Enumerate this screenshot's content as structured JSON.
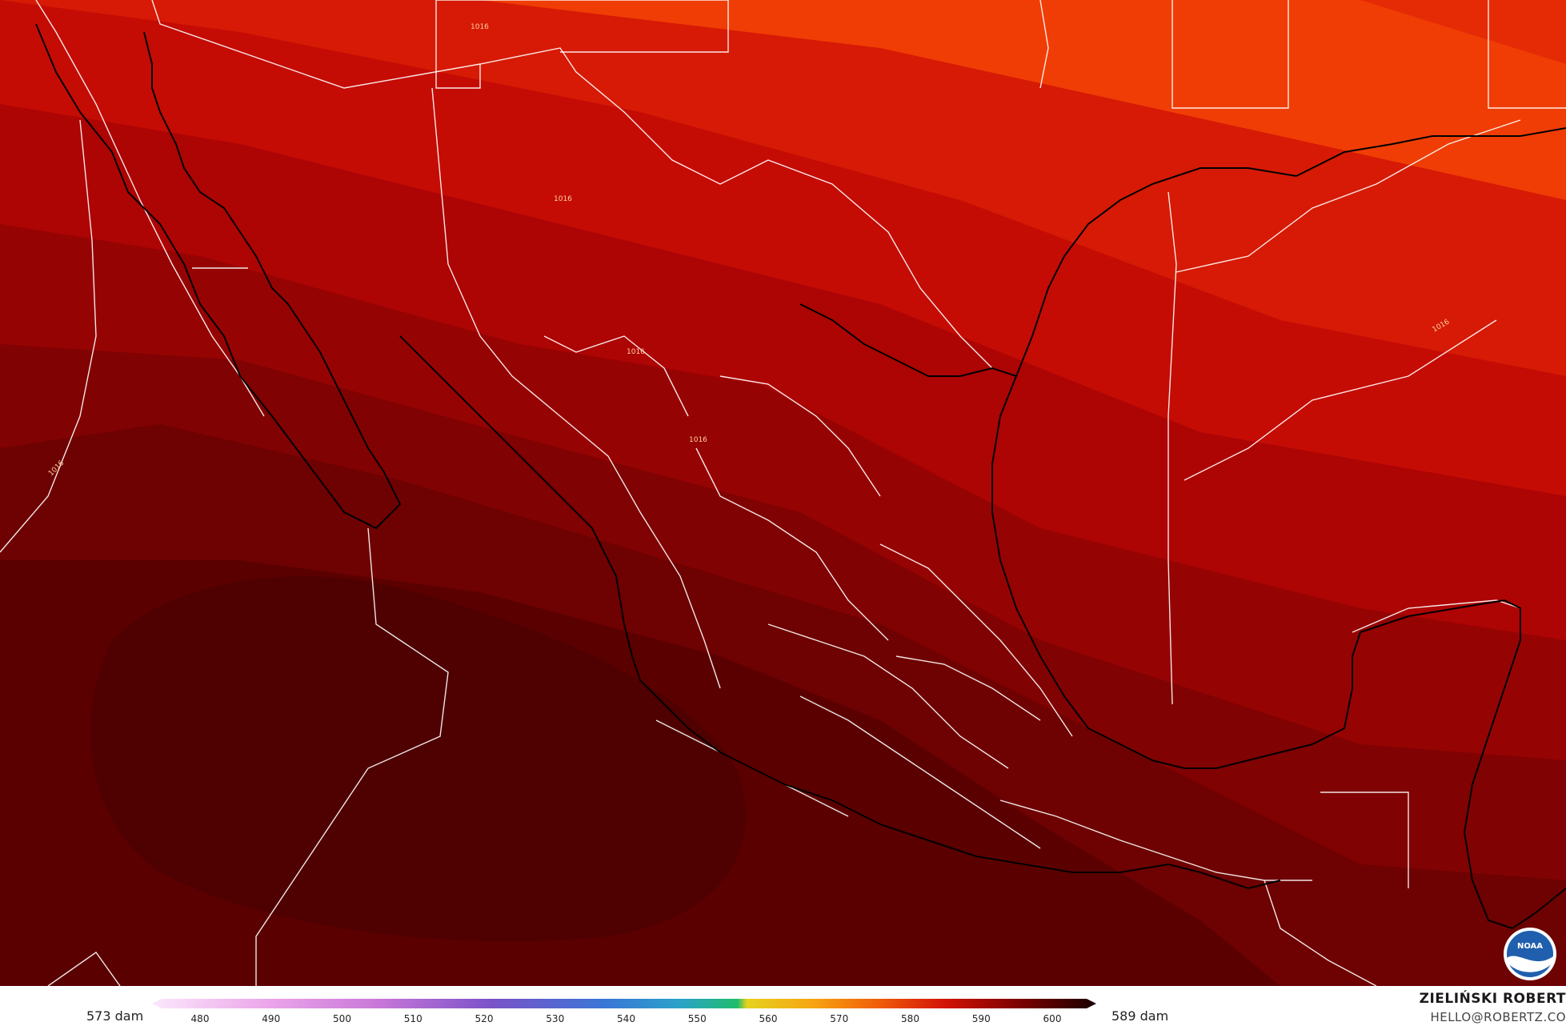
{
  "map": {
    "contour_label": "1016",
    "colors": {
      "band_1": "#f03d05",
      "band_2": "#e52a06",
      "band_3": "#d61a05",
      "band_4": "#c40c05",
      "band_5": "#ad0404",
      "band_6": "#960303",
      "band_7": "#800202",
      "band_8": "#6e0101",
      "band_9": "#5b0000",
      "band_10": "#4f0000",
      "coast": "#000000",
      "border": "#ffffff"
    }
  },
  "footer": {
    "min_label": "573 dam",
    "max_label": "589 dam",
    "ticks": [
      "480",
      "490",
      "500",
      "510",
      "520",
      "530",
      "540",
      "550",
      "560",
      "570",
      "580",
      "590",
      "600"
    ],
    "credit_name": "ZIELIŃSKI ROBERT",
    "credit_email": "HELLO@ROBERTZ.CO"
  },
  "logo": {
    "name": "noaa-logo",
    "text": "NOAA"
  }
}
